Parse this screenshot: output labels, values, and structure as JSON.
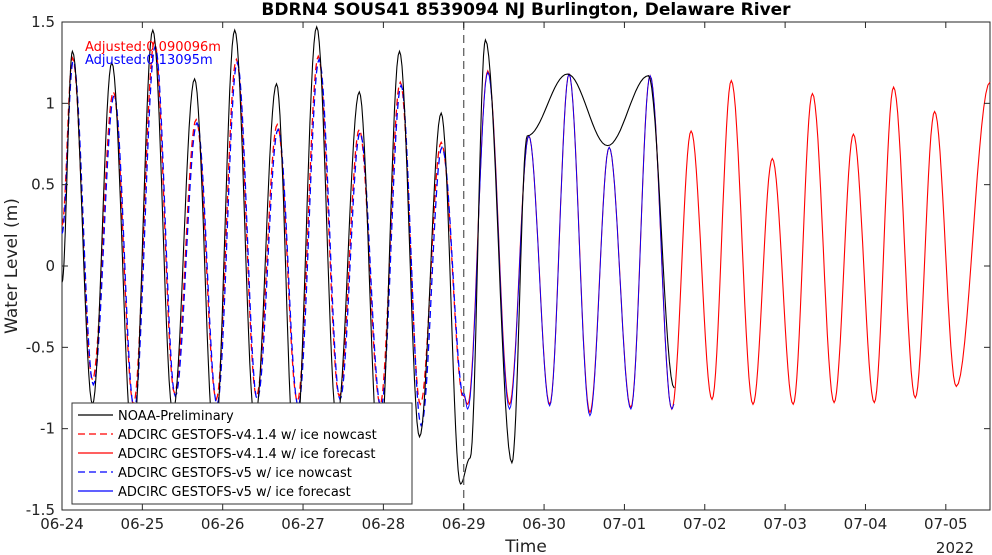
{
  "chart_data": {
    "type": "line",
    "title": "BDRN4 SOUS41 8539094 NJ Burlington, Delaware River",
    "xlabel": "Time",
    "ylabel": "Water Level (m)",
    "year_label": "2022",
    "xlim": [
      0,
      11.55
    ],
    "ylim": [
      -1.5,
      1.5
    ],
    "xticks": [
      0,
      1,
      2,
      3,
      4,
      5,
      6,
      7,
      8,
      9,
      10,
      11
    ],
    "xtick_labels": [
      "06-24",
      "06-25",
      "06-26",
      "06-27",
      "06-28",
      "06-29",
      "06-30",
      "07-01",
      "07-02",
      "07-03",
      "07-04",
      "07-05"
    ],
    "yticks": [
      -1.5,
      -1,
      -0.5,
      0,
      0.5,
      1,
      1.5
    ],
    "ytick_labels": [
      "-1.5",
      "-1",
      "-0.5",
      "0",
      "0.5",
      "1",
      "1.5"
    ],
    "nowcast_forecast_boundary": 5.0,
    "annotations": [
      {
        "text": "Adjusted:0.090096m",
        "color": "#ff0000"
      },
      {
        "text": "Adjusted:0.13095m",
        "color": "#0000ff"
      }
    ],
    "legend_position": "bottom-left",
    "grid": false,
    "series": [
      {
        "name": "NOAA-Preliminary",
        "color": "#000000",
        "style": "solid",
        "peaks": [
          [
            0.13,
            1.32
          ],
          [
            0.62,
            1.25
          ],
          [
            1.13,
            1.45
          ],
          [
            1.65,
            1.15
          ],
          [
            2.15,
            1.45
          ],
          [
            2.67,
            1.12
          ],
          [
            3.17,
            1.47
          ],
          [
            3.7,
            1.07
          ],
          [
            4.2,
            1.32
          ],
          [
            4.72,
            0.94
          ],
          [
            5.27,
            1.39
          ],
          [
            5.79,
            0.8
          ],
          [
            6.29,
            1.18
          ],
          [
            6.79,
            0.74
          ],
          [
            7.3,
            1.17
          ],
          [
            7.62,
            -0.75
          ]
        ],
        "troughs": [
          [
            0.0,
            -0.1
          ],
          [
            0.38,
            -0.85
          ],
          [
            0.88,
            -1.1
          ],
          [
            1.38,
            -0.9
          ],
          [
            1.9,
            -1.1
          ],
          [
            2.4,
            -0.95
          ],
          [
            2.9,
            -1.2
          ],
          [
            3.42,
            -0.95
          ],
          [
            3.95,
            -1.2
          ],
          [
            4.45,
            -1.05
          ],
          [
            4.96,
            -1.34
          ],
          [
            5.08,
            -1.18
          ],
          [
            5.6,
            -1.21
          ]
        ]
      },
      {
        "name": "ADCIRC GESTOFS-v4.1.4 w/ ice nowcast",
        "color": "#ff0000",
        "style": "dashed",
        "peaks": [
          [
            0.13,
            1.28
          ],
          [
            0.64,
            1.07
          ],
          [
            1.15,
            1.38
          ],
          [
            1.67,
            0.9
          ],
          [
            2.17,
            1.27
          ],
          [
            2.68,
            0.87
          ],
          [
            3.19,
            1.29
          ],
          [
            3.7,
            0.84
          ],
          [
            4.21,
            1.13
          ],
          [
            4.72,
            0.76
          ],
          [
            5.0,
            -0.82
          ]
        ],
        "troughs": [
          [
            0.0,
            0.25
          ],
          [
            0.38,
            -0.7
          ],
          [
            0.89,
            -0.85
          ],
          [
            1.4,
            -0.78
          ],
          [
            1.92,
            -0.82
          ],
          [
            2.42,
            -0.8
          ],
          [
            2.93,
            -0.83
          ],
          [
            3.45,
            -0.8
          ],
          [
            3.96,
            -0.85
          ],
          [
            4.46,
            -0.85
          ]
        ]
      },
      {
        "name": "ADCIRC GESTOFS-v4.1.4 w/ ice forecast",
        "color": "#ff0000",
        "style": "solid",
        "peaks": [
          [
            5.0,
            -0.8
          ],
          [
            5.3,
            1.2
          ],
          [
            5.81,
            0.8
          ],
          [
            6.31,
            1.18
          ],
          [
            6.81,
            0.73
          ],
          [
            7.32,
            1.17
          ],
          [
            7.83,
            0.83
          ],
          [
            8.33,
            1.14
          ],
          [
            8.84,
            0.66
          ],
          [
            9.34,
            1.06
          ],
          [
            9.85,
            0.81
          ],
          [
            10.35,
            1.1
          ],
          [
            10.86,
            0.95
          ],
          [
            11.55,
            1.13
          ]
        ],
        "troughs": [
          [
            5.05,
            -0.85
          ],
          [
            5.57,
            -0.85
          ],
          [
            6.07,
            -0.85
          ],
          [
            6.57,
            -0.9
          ],
          [
            7.08,
            -0.87
          ],
          [
            7.59,
            -0.88
          ],
          [
            8.09,
            -0.82
          ],
          [
            8.6,
            -0.85
          ],
          [
            9.1,
            -0.85
          ],
          [
            9.61,
            -0.84
          ],
          [
            10.11,
            -0.84
          ],
          [
            10.62,
            -0.81
          ],
          [
            11.13,
            -0.74
          ]
        ]
      },
      {
        "name": "ADCIRC GESTOFS-v5 w/ ice nowcast",
        "color": "#0000ff",
        "style": "dashed",
        "peaks": [
          [
            0.14,
            1.26
          ],
          [
            0.65,
            1.05
          ],
          [
            1.16,
            1.35
          ],
          [
            1.68,
            0.88
          ],
          [
            2.18,
            1.25
          ],
          [
            2.69,
            0.84
          ],
          [
            3.2,
            1.27
          ],
          [
            3.71,
            0.82
          ],
          [
            4.22,
            1.11
          ],
          [
            4.73,
            0.73
          ],
          [
            5.0,
            -0.8
          ]
        ],
        "troughs": [
          [
            0.0,
            0.2
          ],
          [
            0.39,
            -0.73
          ],
          [
            0.9,
            -0.88
          ],
          [
            1.41,
            -0.8
          ],
          [
            1.93,
            -0.85
          ],
          [
            2.43,
            -0.82
          ],
          [
            2.94,
            -0.86
          ],
          [
            3.46,
            -0.82
          ],
          [
            3.97,
            -0.87
          ],
          [
            4.47,
            -0.98
          ]
        ]
      },
      {
        "name": "ADCIRC GESTOFS-v5 w/ ice forecast",
        "color": "#0000ff",
        "style": "solid",
        "peaks": [
          [
            5.0,
            -0.78
          ],
          [
            5.3,
            1.19
          ],
          [
            5.81,
            0.8
          ],
          [
            6.31,
            1.18
          ],
          [
            6.81,
            0.73
          ],
          [
            7.32,
            1.17
          ],
          [
            7.62,
            -0.85
          ]
        ],
        "troughs": [
          [
            5.05,
            -0.88
          ],
          [
            5.57,
            -0.88
          ],
          [
            6.07,
            -0.86
          ],
          [
            6.57,
            -0.92
          ],
          [
            7.08,
            -0.88
          ],
          [
            7.59,
            -0.88
          ]
        ]
      }
    ]
  }
}
